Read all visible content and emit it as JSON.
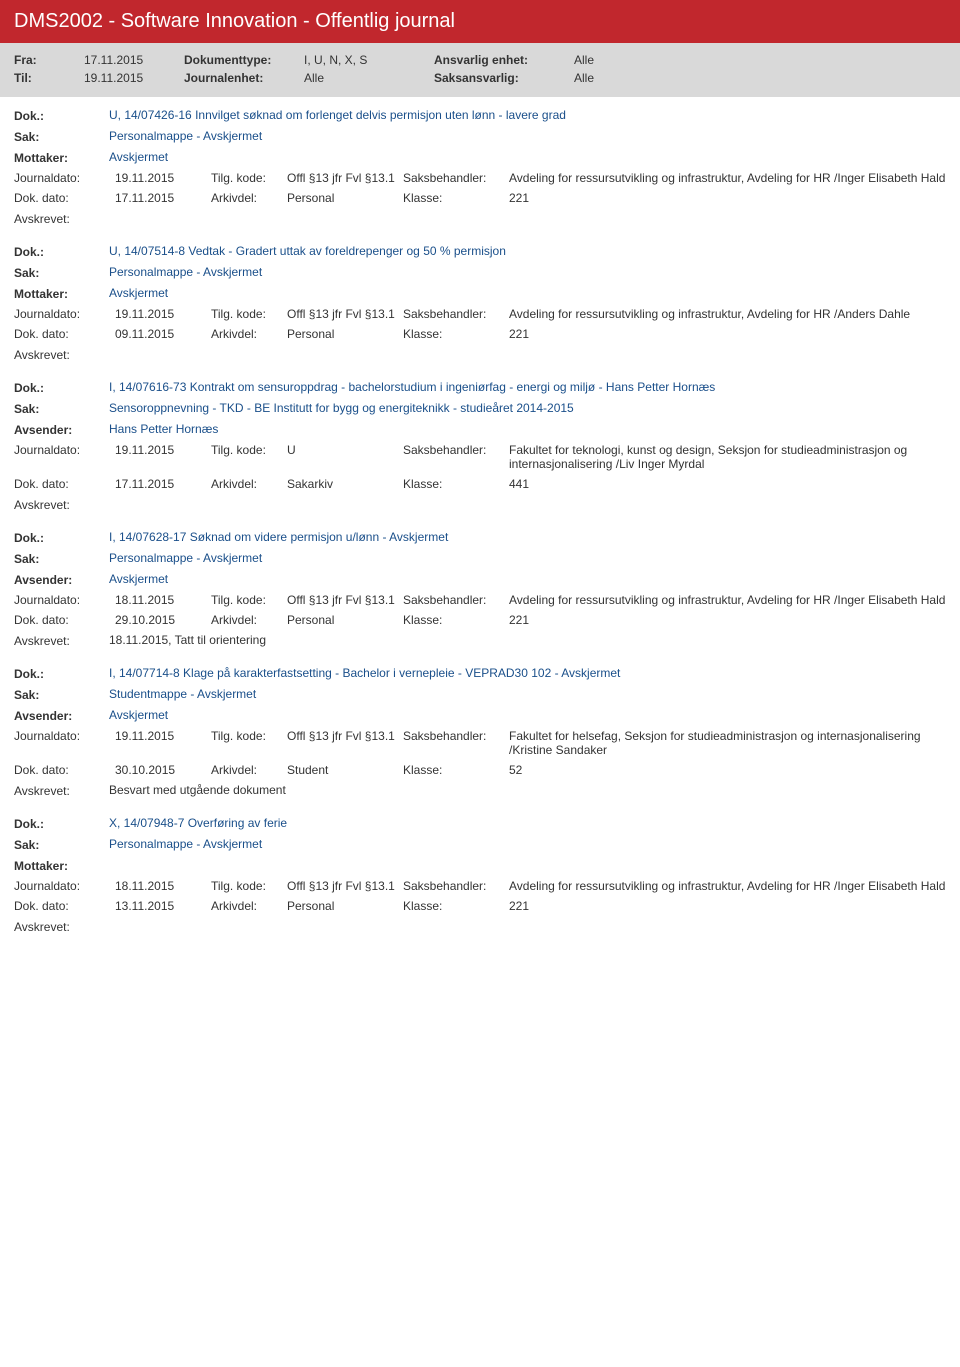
{
  "colors": {
    "header_bg": "#c1272d",
    "header_text": "#ffffff",
    "grey_bg": "#d9d9d9",
    "blue_text": "#1a4f8a",
    "body_text": "#333333"
  },
  "header": {
    "title": "DMS2002 - Software Innovation - Offentlig journal"
  },
  "filter": {
    "fra_label": "Fra:",
    "fra": "17.11.2015",
    "til_label": "Til:",
    "til": "19.11.2015",
    "doktype_label": "Dokumenttype:",
    "doktype": "I, U, N, X, S",
    "journalenhet_label": "Journalenhet:",
    "journalenhet": "Alle",
    "ansvarlig_label": "Ansvarlig enhet:",
    "ansvarlig": "Alle",
    "saksansvarlig_label": "Saksansvarlig:",
    "saksansvarlig": "Alle"
  },
  "labels": {
    "dok": "Dok.:",
    "sak": "Sak:",
    "mottaker": "Mottaker:",
    "avsender": "Avsender:",
    "journaldato": "Journaldato:",
    "tilgkode": "Tilg. kode:",
    "saksbehandler": "Saksbehandler:",
    "dokdato": "Dok. dato:",
    "arkivdel": "Arkivdel:",
    "klasse": "Klasse:",
    "avskrevet": "Avskrevet:"
  },
  "records": [
    {
      "dok": "U, 14/07426-16 Innvilget søknad om forlenget delvis permisjon uten lønn - lavere grad",
      "sak": "Personalmappe - Avskjermet",
      "party_label": "Mottaker:",
      "party": "Avskjermet",
      "journaldato": "19.11.2015",
      "tilgkode": "Offl §13 jfr Fvl §13.1",
      "saksbehandler": "Avdeling for ressursutvikling og infrastruktur, Avdeling for HR /Inger Elisabeth Hald",
      "dokdato": "17.11.2015",
      "arkivdel": "Personal",
      "klasse": "221",
      "avskrevet": ""
    },
    {
      "dok": "U, 14/07514-8 Vedtak - Gradert uttak av foreldrepenger og 50 % permisjon",
      "sak": "Personalmappe - Avskjermet",
      "party_label": "Mottaker:",
      "party": "Avskjermet",
      "journaldato": "19.11.2015",
      "tilgkode": "Offl §13 jfr Fvl §13.1",
      "saksbehandler": "Avdeling for ressursutvikling og infrastruktur, Avdeling for HR /Anders Dahle",
      "dokdato": "09.11.2015",
      "arkivdel": "Personal",
      "klasse": "221",
      "avskrevet": ""
    },
    {
      "dok": "I, 14/07616-73 Kontrakt om sensuroppdrag - bachelorstudium i ingeniørfag - energi og miljø - Hans Petter Hornæs",
      "sak": "Sensoroppnevning - TKD - BE Institutt for bygg og energiteknikk - studieåret 2014-2015",
      "party_label": "Avsender:",
      "party": "Hans Petter Hornæs",
      "journaldato": "19.11.2015",
      "tilgkode": "U",
      "saksbehandler": "Fakultet for teknologi, kunst og design, Seksjon for studieadministrasjon og internasjonalisering /Liv Inger Myrdal",
      "dokdato": "17.11.2015",
      "arkivdel": "Sakarkiv",
      "klasse": "441",
      "avskrevet": ""
    },
    {
      "dok": "I, 14/07628-17 Søknad om videre permisjon u/lønn - Avskjermet",
      "sak": "Personalmappe - Avskjermet",
      "party_label": "Avsender:",
      "party": "Avskjermet",
      "journaldato": "18.11.2015",
      "tilgkode": "Offl §13 jfr Fvl §13.1",
      "saksbehandler": "Avdeling for ressursutvikling og infrastruktur, Avdeling for HR /Inger Elisabeth Hald",
      "dokdato": "29.10.2015",
      "arkivdel": "Personal",
      "klasse": "221",
      "avskrevet": "18.11.2015, Tatt til orientering"
    },
    {
      "dok": "I, 14/07714-8 Klage på karakterfastsetting - Bachelor i vernepleie - VEPRAD30 102 - Avskjermet",
      "sak": "Studentmappe - Avskjermet",
      "party_label": "Avsender:",
      "party": "Avskjermet",
      "journaldato": "19.11.2015",
      "tilgkode": "Offl §13 jfr Fvl §13.1",
      "saksbehandler": "Fakultet for helsefag, Seksjon for studieadministrasjon og internasjonalisering /Kristine Sandaker",
      "dokdato": "30.10.2015",
      "arkivdel": "Student",
      "klasse": "52",
      "avskrevet": "Besvart med utgående dokument"
    },
    {
      "dok": "X, 14/07948-7 Overføring av ferie",
      "sak": "Personalmappe - Avskjermet",
      "party_label": "Mottaker:",
      "party": "",
      "journaldato": "18.11.2015",
      "tilgkode": "Offl §13 jfr Fvl §13.1",
      "saksbehandler": "Avdeling for ressursutvikling og infrastruktur, Avdeling for HR /Inger Elisabeth Hald",
      "dokdato": "13.11.2015",
      "arkivdel": "Personal",
      "klasse": "221",
      "avskrevet": ""
    }
  ]
}
